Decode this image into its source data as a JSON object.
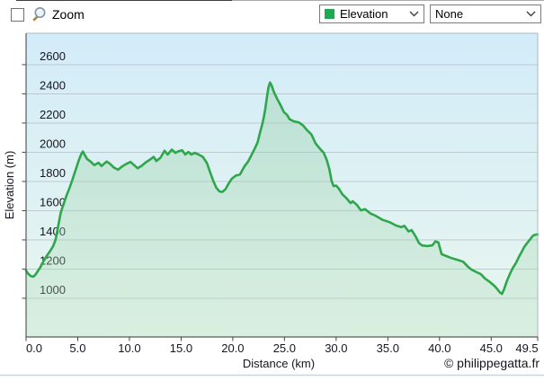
{
  "toolbar": {
    "zoom_label": "Zoom",
    "zoom_checked": false,
    "series_select": {
      "value": "Elevation",
      "swatch_color": "#1ca94f"
    },
    "secondary_select": {
      "value": "None"
    }
  },
  "chart_data": {
    "type": "area",
    "title": "",
    "xlabel": "Distance  (km)",
    "ylabel": "Elevation (m)",
    "watermark": "© philippegatta.fr",
    "grid": true,
    "legend_position": "toolbar-dropdown",
    "xlim": [
      0,
      49.5
    ],
    "ylim": [
      735,
      2815
    ],
    "xticks": {
      "values": [
        0,
        5,
        10,
        15,
        20,
        25,
        30,
        35,
        40,
        45,
        49.5
      ],
      "labels": [
        "0.0",
        "5.0",
        "10.0",
        "15.0",
        "20.0",
        "25.0",
        "30.0",
        "35.0",
        "40.0",
        "45.0",
        "49.5"
      ]
    },
    "yticks": {
      "values": [
        1000,
        1200,
        1400,
        1600,
        1800,
        2000,
        2200,
        2400,
        2600
      ],
      "labels": [
        "1000",
        "1200",
        "1400",
        "1600",
        "1800",
        "2000",
        "2200",
        "2400",
        "2600"
      ]
    },
    "series": [
      {
        "name": "Elevation",
        "color": "#2ea64b",
        "points": [
          [
            0,
            1190
          ],
          [
            0.2,
            1168
          ],
          [
            0.45,
            1152
          ],
          [
            0.7,
            1148
          ],
          [
            0.9,
            1160
          ],
          [
            1.1,
            1182
          ],
          [
            1.4,
            1215
          ],
          [
            1.7,
            1255
          ],
          [
            2,
            1290
          ],
          [
            2.3,
            1320
          ],
          [
            2.6,
            1355
          ],
          [
            2.85,
            1400
          ],
          [
            3.1,
            1490
          ],
          [
            3.35,
            1585
          ],
          [
            3.6,
            1640
          ],
          [
            3.9,
            1700
          ],
          [
            4.2,
            1755
          ],
          [
            4.5,
            1815
          ],
          [
            4.8,
            1880
          ],
          [
            5.1,
            1945
          ],
          [
            5.35,
            1990
          ],
          [
            5.5,
            2005
          ],
          [
            5.65,
            1985
          ],
          [
            5.9,
            1955
          ],
          [
            6.2,
            1938
          ],
          [
            6.6,
            1912
          ],
          [
            7,
            1928
          ],
          [
            7.3,
            1906
          ],
          [
            7.8,
            1936
          ],
          [
            8.1,
            1922
          ],
          [
            8.5,
            1895
          ],
          [
            8.9,
            1880
          ],
          [
            9.3,
            1903
          ],
          [
            9.7,
            1920
          ],
          [
            10.1,
            1934
          ],
          [
            10.45,
            1912
          ],
          [
            10.8,
            1890
          ],
          [
            11.2,
            1908
          ],
          [
            11.6,
            1932
          ],
          [
            12,
            1950
          ],
          [
            12.35,
            1968
          ],
          [
            12.6,
            1940
          ],
          [
            13,
            1962
          ],
          [
            13.4,
            2010
          ],
          [
            13.7,
            1984
          ],
          [
            14.1,
            2018
          ],
          [
            14.45,
            1996
          ],
          [
            14.8,
            2008
          ],
          [
            15.1,
            2014
          ],
          [
            15.4,
            1985
          ],
          [
            15.7,
            2002
          ],
          [
            16,
            1984
          ],
          [
            16.3,
            1996
          ],
          [
            16.7,
            1984
          ],
          [
            17.1,
            1968
          ],
          [
            17.5,
            1925
          ],
          [
            17.8,
            1865
          ],
          [
            18.1,
            1805
          ],
          [
            18.4,
            1758
          ],
          [
            18.7,
            1732
          ],
          [
            19,
            1728
          ],
          [
            19.3,
            1748
          ],
          [
            19.6,
            1786
          ],
          [
            19.9,
            1818
          ],
          [
            20.3,
            1840
          ],
          [
            20.7,
            1848
          ],
          [
            21.1,
            1900
          ],
          [
            21.5,
            1938
          ],
          [
            21.8,
            1980
          ],
          [
            22.1,
            2022
          ],
          [
            22.4,
            2068
          ],
          [
            22.65,
            2140
          ],
          [
            22.85,
            2192
          ],
          [
            23,
            2240
          ],
          [
            23.15,
            2300
          ],
          [
            23.3,
            2375
          ],
          [
            23.45,
            2445
          ],
          [
            23.6,
            2478
          ],
          [
            23.75,
            2458
          ],
          [
            24,
            2408
          ],
          [
            24.35,
            2358
          ],
          [
            24.65,
            2318
          ],
          [
            24.95,
            2275
          ],
          [
            25.25,
            2256
          ],
          [
            25.5,
            2226
          ],
          [
            25.9,
            2212
          ],
          [
            26.4,
            2204
          ],
          [
            26.8,
            2183
          ],
          [
            27.2,
            2150
          ],
          [
            27.6,
            2122
          ],
          [
            28,
            2062
          ],
          [
            28.4,
            2026
          ],
          [
            28.8,
            1996
          ],
          [
            29.1,
            1945
          ],
          [
            29.35,
            1882
          ],
          [
            29.55,
            1805
          ],
          [
            29.75,
            1768
          ],
          [
            30,
            1772
          ],
          [
            30.25,
            1752
          ],
          [
            30.6,
            1712
          ],
          [
            31,
            1685
          ],
          [
            31.4,
            1652
          ],
          [
            31.6,
            1664
          ],
          [
            32,
            1640
          ],
          [
            32.4,
            1602
          ],
          [
            32.8,
            1610
          ],
          [
            33.3,
            1582
          ],
          [
            33.8,
            1566
          ],
          [
            34.5,
            1537
          ],
          [
            35.2,
            1520
          ],
          [
            35.8,
            1498
          ],
          [
            36.3,
            1487
          ],
          [
            36.6,
            1496
          ],
          [
            37,
            1458
          ],
          [
            37.3,
            1467
          ],
          [
            37.7,
            1422
          ],
          [
            38,
            1380
          ],
          [
            38.3,
            1362
          ],
          [
            38.8,
            1358
          ],
          [
            39.3,
            1362
          ],
          [
            39.6,
            1390
          ],
          [
            39.9,
            1382
          ],
          [
            40.2,
            1302
          ],
          [
            40.7,
            1288
          ],
          [
            41.2,
            1274
          ],
          [
            41.8,
            1262
          ],
          [
            42.3,
            1250
          ],
          [
            42.7,
            1220
          ],
          [
            43.1,
            1196
          ],
          [
            43.6,
            1178
          ],
          [
            44,
            1165
          ],
          [
            44.4,
            1135
          ],
          [
            44.9,
            1110
          ],
          [
            45.3,
            1086
          ],
          [
            45.6,
            1062
          ],
          [
            45.85,
            1040
          ],
          [
            46.05,
            1030
          ],
          [
            46.25,
            1062
          ],
          [
            46.5,
            1115
          ],
          [
            46.8,
            1165
          ],
          [
            47.1,
            1208
          ],
          [
            47.4,
            1242
          ],
          [
            47.7,
            1286
          ],
          [
            47.95,
            1318
          ],
          [
            48.2,
            1352
          ],
          [
            48.5,
            1380
          ],
          [
            48.75,
            1402
          ],
          [
            49,
            1426
          ],
          [
            49.2,
            1434
          ],
          [
            49.5,
            1438
          ]
        ]
      }
    ],
    "styles": {
      "plot_bg_top": "#d3ecf9",
      "plot_bg_bottom": "#e9f6ee",
      "area_fill_top": "rgba(147,205,162,0.40)",
      "area_fill_bottom": "rgba(176,222,188,0.28)",
      "gridline": "#bdcad2",
      "border_light": "#a9b8c0",
      "axis_dark": "#5a5a5a",
      "tick": "#444444",
      "text": "#15151f",
      "separator": "#c3d7e3"
    }
  }
}
